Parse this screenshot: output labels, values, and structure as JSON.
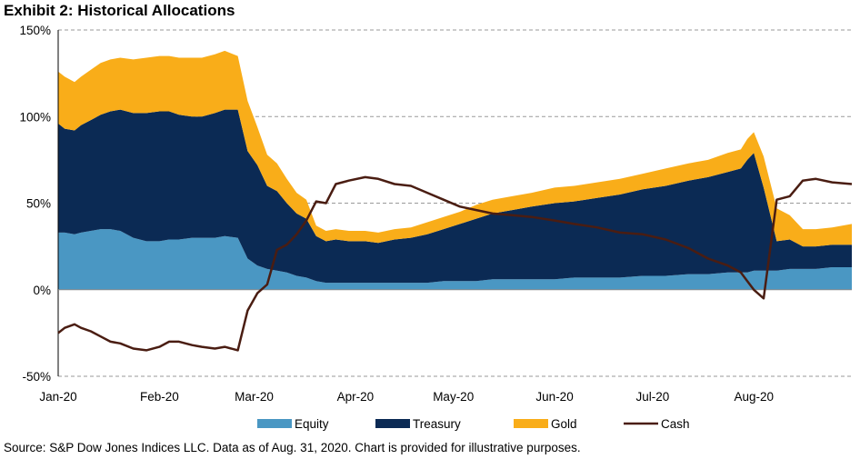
{
  "chart_data": {
    "type": "area",
    "title": "Exhibit 2: Historical Allocations",
    "source": "Source: S&P Dow Jones Indices LLC. Data as of Aug. 31, 2020. Chart is provided for illustrative purposes.",
    "xlabel": "",
    "ylabel": "",
    "ylim": [
      -50,
      150
    ],
    "y_ticks": [
      "150%",
      "100%",
      "50%",
      "0%",
      "-50%"
    ],
    "y_tick_values": [
      150,
      100,
      50,
      0,
      -50
    ],
    "x_tick_labels": [
      "Jan-20",
      "Feb-20",
      "Mar-20",
      "Apr-20",
      "May-20",
      "Jun-20",
      "Jul-20",
      "Aug-20"
    ],
    "x_tick_days": [
      0,
      31,
      60,
      91,
      121,
      152,
      182,
      213
    ],
    "x_end_day": 243,
    "grid": true,
    "legend_position": "bottom",
    "colors": {
      "Equity": "#4a97c3",
      "Treasury": "#0b2a54",
      "Gold": "#f9ad19",
      "Cash": "#4a1d12"
    },
    "x": [
      "2020-01-01",
      "2020-01-03",
      "2020-01-06",
      "2020-01-08",
      "2020-01-11",
      "2020-01-14",
      "2020-01-17",
      "2020-01-20",
      "2020-01-24",
      "2020-01-28",
      "2020-02-01",
      "2020-02-04",
      "2020-02-07",
      "2020-02-11",
      "2020-02-14",
      "2020-02-18",
      "2020-02-21",
      "2020-02-25",
      "2020-02-28",
      "2020-03-02",
      "2020-03-05",
      "2020-03-08",
      "2020-03-11",
      "2020-03-14",
      "2020-03-17",
      "2020-03-20",
      "2020-03-23",
      "2020-03-26",
      "2020-03-30",
      "2020-04-04",
      "2020-04-08",
      "2020-04-13",
      "2020-04-18",
      "2020-04-23",
      "2020-04-28",
      "2020-05-03",
      "2020-05-08",
      "2020-05-13",
      "2020-05-19",
      "2020-05-25",
      "2020-06-01",
      "2020-06-07",
      "2020-06-14",
      "2020-06-21",
      "2020-06-28",
      "2020-07-05",
      "2020-07-12",
      "2020-07-18",
      "2020-07-24",
      "2020-07-28",
      "2020-07-30",
      "2020-08-01",
      "2020-08-04",
      "2020-08-08",
      "2020-08-12",
      "2020-08-16",
      "2020-08-20",
      "2020-08-25",
      "2020-08-31"
    ],
    "series": [
      {
        "name": "Equity",
        "values": [
          33,
          33,
          32,
          33,
          34,
          35,
          35,
          34,
          30,
          28,
          28,
          29,
          29,
          30,
          30,
          30,
          31,
          30,
          18,
          14,
          12,
          11,
          10,
          8,
          7,
          5,
          4,
          4,
          4,
          4,
          4,
          4,
          4,
          4,
          5,
          5,
          5,
          6,
          6,
          6,
          6,
          7,
          7,
          7,
          8,
          8,
          9,
          9,
          10,
          10,
          10,
          11,
          11,
          11,
          12,
          12,
          12,
          13,
          13
        ]
      },
      {
        "name": "Treasury",
        "values": [
          63,
          60,
          60,
          62,
          64,
          66,
          68,
          70,
          72,
          74,
          75,
          74,
          72,
          70,
          70,
          72,
          73,
          74,
          62,
          58,
          48,
          46,
          40,
          36,
          34,
          26,
          24,
          25,
          24,
          24,
          23,
          25,
          26,
          28,
          30,
          33,
          36,
          38,
          40,
          42,
          44,
          44,
          46,
          48,
          50,
          52,
          54,
          56,
          58,
          60,
          65,
          68,
          48,
          17,
          17,
          13,
          13,
          13,
          13
        ]
      },
      {
        "name": "Gold",
        "values": [
          30,
          30,
          28,
          28,
          29,
          30,
          30,
          30,
          31,
          32,
          32,
          32,
          33,
          34,
          34,
          34,
          34,
          31,
          29,
          22,
          18,
          16,
          14,
          12,
          11,
          6,
          6,
          6,
          6,
          6,
          6,
          6,
          6,
          7,
          7,
          7,
          8,
          8,
          8,
          8,
          9,
          9,
          9,
          9,
          9,
          10,
          10,
          10,
          11,
          11,
          12,
          12,
          18,
          19,
          14,
          10,
          10,
          10,
          12
        ]
      },
      {
        "name": "Cash",
        "values": [
          -25,
          -22,
          -20,
          -22,
          -24,
          -27,
          -30,
          -31,
          -34,
          -35,
          -33,
          -30,
          -30,
          -32,
          -33,
          -34,
          -33,
          -35,
          -12,
          -2,
          3,
          23,
          26,
          32,
          40,
          51,
          50,
          61,
          63,
          65,
          64,
          61,
          60,
          56,
          52,
          48,
          46,
          44,
          43,
          42,
          40,
          38,
          36,
          33,
          32,
          29,
          24,
          18,
          14,
          10,
          5,
          0,
          -5,
          52,
          54,
          63,
          64,
          62,
          61
        ]
      }
    ]
  }
}
